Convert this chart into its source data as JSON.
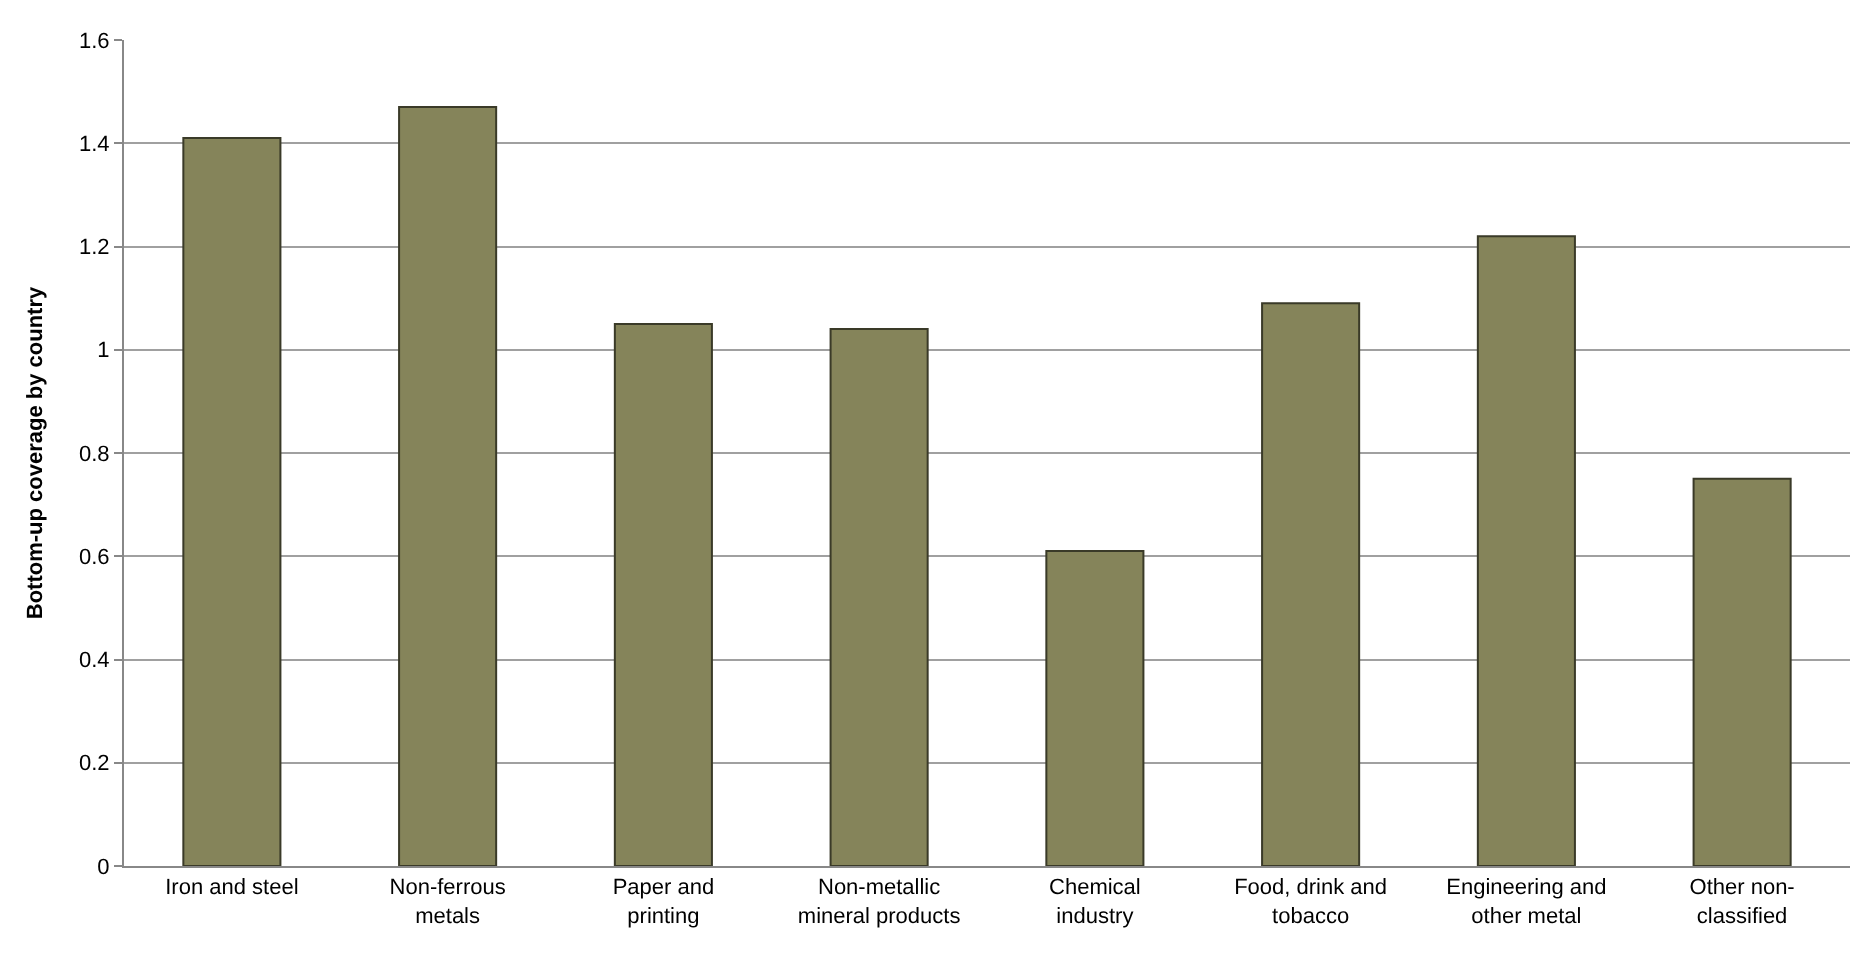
{
  "chart_data": {
    "type": "bar",
    "ylabel": "Bottom-up coverage by country",
    "categories": [
      "Iron and steel",
      "Non-ferrous metals",
      "Paper and printing",
      "Non-metallic mineral products",
      "Chemical industry",
      "Food, drink and tobacco",
      "Engineering and other metal",
      "Other non-classified"
    ],
    "values": [
      1.41,
      1.47,
      1.05,
      1.04,
      0.61,
      1.09,
      1.22,
      0.75
    ],
    "color": "#85845a",
    "ylim": [
      0,
      1.6
    ],
    "yticks": [
      0,
      0.2,
      0.4,
      0.6,
      0.8,
      1,
      1.2,
      1.4,
      1.6
    ],
    "grid": "y"
  }
}
